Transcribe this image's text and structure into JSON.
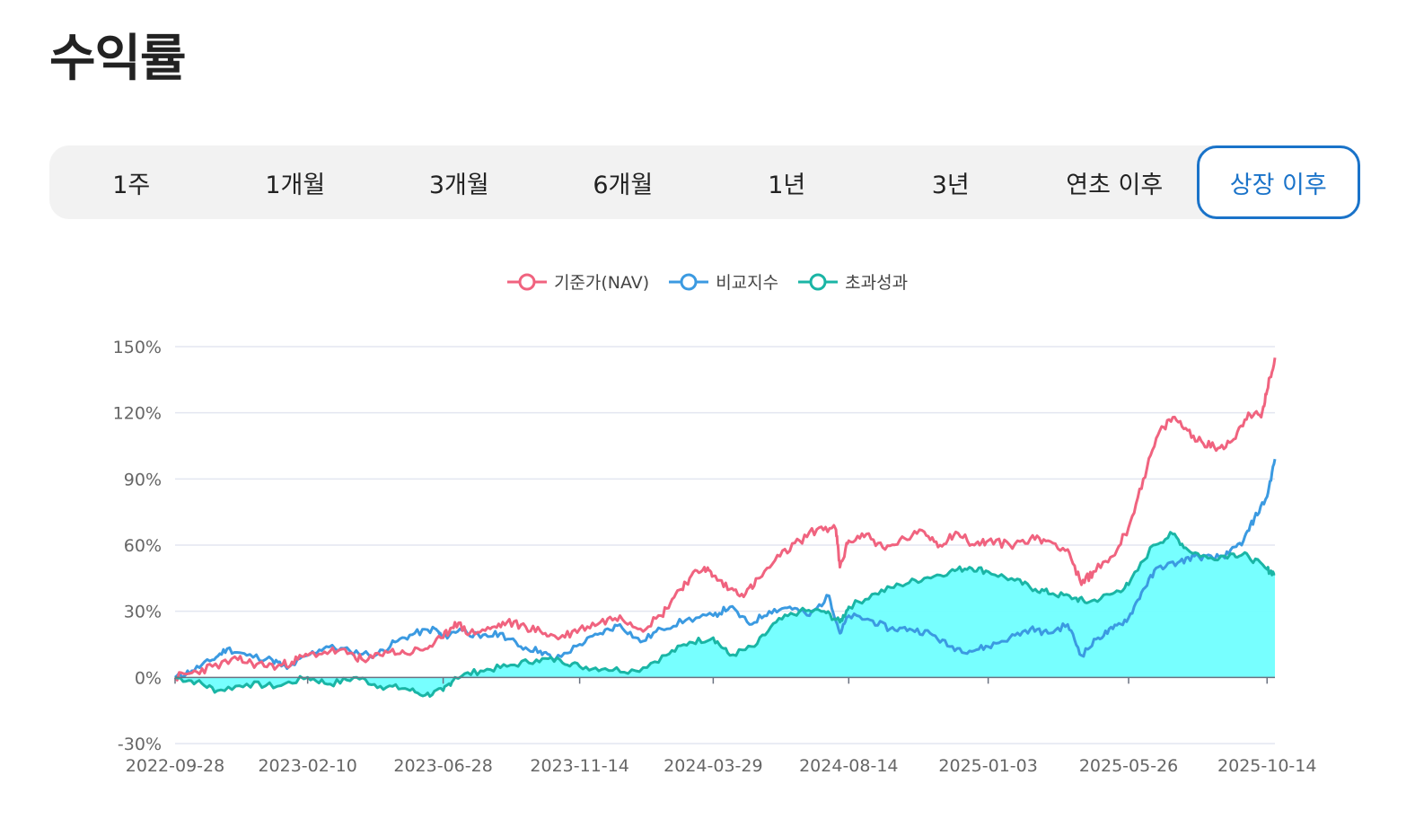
{
  "page": {
    "title": "수익률"
  },
  "periods": [
    {
      "label": "1주",
      "active": false
    },
    {
      "label": "1개월",
      "active": false
    },
    {
      "label": "3개월",
      "active": false
    },
    {
      "label": "6개월",
      "active": false
    },
    {
      "label": "1년",
      "active": false
    },
    {
      "label": "3년",
      "active": false
    },
    {
      "label": "연초 이후",
      "active": false
    },
    {
      "label": "상장 이후",
      "active": true
    }
  ],
  "chart_data": {
    "type": "line",
    "title": "",
    "xlabel": "",
    "ylabel": "",
    "ylim": [
      -30,
      150
    ],
    "y_ticks": [
      "150%",
      "120%",
      "90%",
      "60%",
      "30%",
      "0%",
      "-30%"
    ],
    "y_tick_values": [
      150,
      120,
      90,
      60,
      30,
      0,
      -30
    ],
    "x_ticks": [
      "2022-09-28",
      "2023-02-10",
      "2023-06-28",
      "2023-11-14",
      "2024-03-29",
      "2024-08-14",
      "2025-01-03",
      "2025-05-26",
      "2025-10-14"
    ],
    "x_range": [
      "2022-09-28",
      "2025-10-22"
    ],
    "grid": true,
    "legend_position": "top-center",
    "series": [
      {
        "name": "기준가(NAV)",
        "color": "#f0637f",
        "points": [
          [
            "2022-09-28",
            0
          ],
          [
            "2022-10-15",
            2
          ],
          [
            "2022-11-05",
            5
          ],
          [
            "2022-12-01",
            8
          ],
          [
            "2022-12-20",
            6
          ],
          [
            "2023-01-10",
            5
          ],
          [
            "2023-01-25",
            7
          ],
          [
            "2023-02-10",
            10
          ],
          [
            "2023-03-05",
            12
          ],
          [
            "2023-03-25",
            11
          ],
          [
            "2023-04-10",
            7
          ],
          [
            "2023-04-30",
            12
          ],
          [
            "2023-05-20",
            11
          ],
          [
            "2023-06-10",
            13
          ],
          [
            "2023-06-28",
            18
          ],
          [
            "2023-07-10",
            25
          ],
          [
            "2023-07-25",
            20
          ],
          [
            "2023-08-15",
            22
          ],
          [
            "2023-09-01",
            25
          ],
          [
            "2023-09-20",
            23
          ],
          [
            "2023-10-10",
            20
          ],
          [
            "2023-10-25",
            18
          ],
          [
            "2023-11-14",
            22
          ],
          [
            "2023-12-05",
            25
          ],
          [
            "2023-12-25",
            28
          ],
          [
            "2024-01-15",
            22
          ],
          [
            "2024-02-05",
            28
          ],
          [
            "2024-02-20",
            38
          ],
          [
            "2024-03-05",
            45
          ],
          [
            "2024-03-20",
            50
          ],
          [
            "2024-03-29",
            46
          ],
          [
            "2024-04-15",
            40
          ],
          [
            "2024-05-01",
            38
          ],
          [
            "2024-05-15",
            45
          ],
          [
            "2024-06-05",
            55
          ],
          [
            "2024-06-25",
            62
          ],
          [
            "2024-07-15",
            68
          ],
          [
            "2024-08-01",
            67
          ],
          [
            "2024-08-05",
            50
          ],
          [
            "2024-08-14",
            62
          ],
          [
            "2024-09-01",
            65
          ],
          [
            "2024-09-20",
            58
          ],
          [
            "2024-10-10",
            63
          ],
          [
            "2024-10-30",
            66
          ],
          [
            "2024-11-15",
            60
          ],
          [
            "2024-12-01",
            66
          ],
          [
            "2024-12-20",
            60
          ],
          [
            "2025-01-03",
            62
          ],
          [
            "2025-01-25",
            60
          ],
          [
            "2025-02-15",
            63
          ],
          [
            "2025-03-05",
            62
          ],
          [
            "2025-03-25",
            58
          ],
          [
            "2025-04-08",
            42
          ],
          [
            "2025-04-20",
            48
          ],
          [
            "2025-05-10",
            55
          ],
          [
            "2025-05-26",
            68
          ],
          [
            "2025-06-10",
            90
          ],
          [
            "2025-06-25",
            110
          ],
          [
            "2025-07-10",
            118
          ],
          [
            "2025-07-25",
            112
          ],
          [
            "2025-08-10",
            106
          ],
          [
            "2025-08-25",
            104
          ],
          [
            "2025-09-10",
            108
          ],
          [
            "2025-09-25",
            120
          ],
          [
            "2025-10-08",
            118
          ],
          [
            "2025-10-14",
            130
          ],
          [
            "2025-10-22",
            145
          ]
        ]
      },
      {
        "name": "비교지수",
        "color": "#3b9ae1",
        "points": [
          [
            "2022-09-28",
            0
          ],
          [
            "2022-10-15",
            3
          ],
          [
            "2022-11-05",
            8
          ],
          [
            "2022-11-20",
            13
          ],
          [
            "2022-12-10",
            10
          ],
          [
            "2023-01-05",
            8
          ],
          [
            "2023-01-20",
            4
          ],
          [
            "2023-02-10",
            10
          ],
          [
            "2023-03-01",
            14
          ],
          [
            "2023-03-25",
            12
          ],
          [
            "2023-04-20",
            10
          ],
          [
            "2023-05-10",
            16
          ],
          [
            "2023-05-30",
            20
          ],
          [
            "2023-06-20",
            22
          ],
          [
            "2023-06-28",
            18
          ],
          [
            "2023-07-15",
            22
          ],
          [
            "2023-08-05",
            18
          ],
          [
            "2023-08-25",
            20
          ],
          [
            "2023-09-15",
            14
          ],
          [
            "2023-10-05",
            12
          ],
          [
            "2023-10-20",
            8
          ],
          [
            "2023-11-14",
            15
          ],
          [
            "2023-12-05",
            20
          ],
          [
            "2023-12-25",
            24
          ],
          [
            "2024-01-15",
            16
          ],
          [
            "2024-02-05",
            22
          ],
          [
            "2024-03-01",
            26
          ],
          [
            "2024-03-29",
            28
          ],
          [
            "2024-04-15",
            32
          ],
          [
            "2024-05-05",
            24
          ],
          [
            "2024-05-25",
            30
          ],
          [
            "2024-06-15",
            32
          ],
          [
            "2024-07-05",
            28
          ],
          [
            "2024-07-25",
            37
          ],
          [
            "2024-08-05",
            20
          ],
          [
            "2024-08-14",
            28
          ],
          [
            "2024-09-05",
            26
          ],
          [
            "2024-09-25",
            22
          ],
          [
            "2024-10-15",
            22
          ],
          [
            "2024-11-05",
            20
          ],
          [
            "2024-11-25",
            14
          ],
          [
            "2024-12-15",
            12
          ],
          [
            "2025-01-03",
            14
          ],
          [
            "2025-01-25",
            18
          ],
          [
            "2025-02-15",
            22
          ],
          [
            "2025-03-05",
            20
          ],
          [
            "2025-03-25",
            24
          ],
          [
            "2025-04-08",
            10
          ],
          [
            "2025-04-25",
            18
          ],
          [
            "2025-05-10",
            22
          ],
          [
            "2025-05-26",
            27
          ],
          [
            "2025-06-10",
            40
          ],
          [
            "2025-06-25",
            50
          ],
          [
            "2025-07-15",
            52
          ],
          [
            "2025-08-01",
            55
          ],
          [
            "2025-08-20",
            54
          ],
          [
            "2025-09-05",
            56
          ],
          [
            "2025-09-20",
            62
          ],
          [
            "2025-10-01",
            72
          ],
          [
            "2025-10-14",
            82
          ],
          [
            "2025-10-22",
            99
          ]
        ]
      },
      {
        "name": "초과성과",
        "color": "#1ab5a5",
        "fill": "#70ffff",
        "points": [
          [
            "2022-09-28",
            0
          ],
          [
            "2022-10-20",
            -2
          ],
          [
            "2022-11-10",
            -6
          ],
          [
            "2022-12-10",
            -3
          ],
          [
            "2023-01-10",
            -4
          ],
          [
            "2023-02-10",
            0
          ],
          [
            "2023-03-05",
            -3
          ],
          [
            "2023-04-01",
            0
          ],
          [
            "2023-04-25",
            -4
          ],
          [
            "2023-05-20",
            -5
          ],
          [
            "2023-06-10",
            -8
          ],
          [
            "2023-06-28",
            -6
          ],
          [
            "2023-07-10",
            0
          ],
          [
            "2023-08-05",
            3
          ],
          [
            "2023-09-01",
            5
          ],
          [
            "2023-10-01",
            8
          ],
          [
            "2023-10-25",
            8
          ],
          [
            "2023-11-14",
            5
          ],
          [
            "2023-12-10",
            4
          ],
          [
            "2024-01-10",
            3
          ],
          [
            "2024-02-10",
            10
          ],
          [
            "2024-03-05",
            16
          ],
          [
            "2024-03-29",
            18
          ],
          [
            "2024-04-15",
            10
          ],
          [
            "2024-05-10",
            14
          ],
          [
            "2024-06-01",
            25
          ],
          [
            "2024-06-25",
            30
          ],
          [
            "2024-07-20",
            30
          ],
          [
            "2024-08-05",
            25
          ],
          [
            "2024-08-14",
            32
          ],
          [
            "2024-09-10",
            38
          ],
          [
            "2024-10-05",
            42
          ],
          [
            "2024-10-30",
            45
          ],
          [
            "2024-11-25",
            48
          ],
          [
            "2024-12-15",
            50
          ],
          [
            "2025-01-03",
            48
          ],
          [
            "2025-01-30",
            44
          ],
          [
            "2025-02-20",
            40
          ],
          [
            "2025-03-10",
            38
          ],
          [
            "2025-04-01",
            36
          ],
          [
            "2025-04-15",
            34
          ],
          [
            "2025-05-10",
            38
          ],
          [
            "2025-05-26",
            42
          ],
          [
            "2025-06-20",
            60
          ],
          [
            "2025-07-10",
            65
          ],
          [
            "2025-07-25",
            58
          ],
          [
            "2025-08-15",
            54
          ],
          [
            "2025-09-10",
            56
          ],
          [
            "2025-09-25",
            55
          ],
          [
            "2025-10-14",
            49
          ],
          [
            "2025-10-22",
            47
          ]
        ]
      }
    ]
  }
}
